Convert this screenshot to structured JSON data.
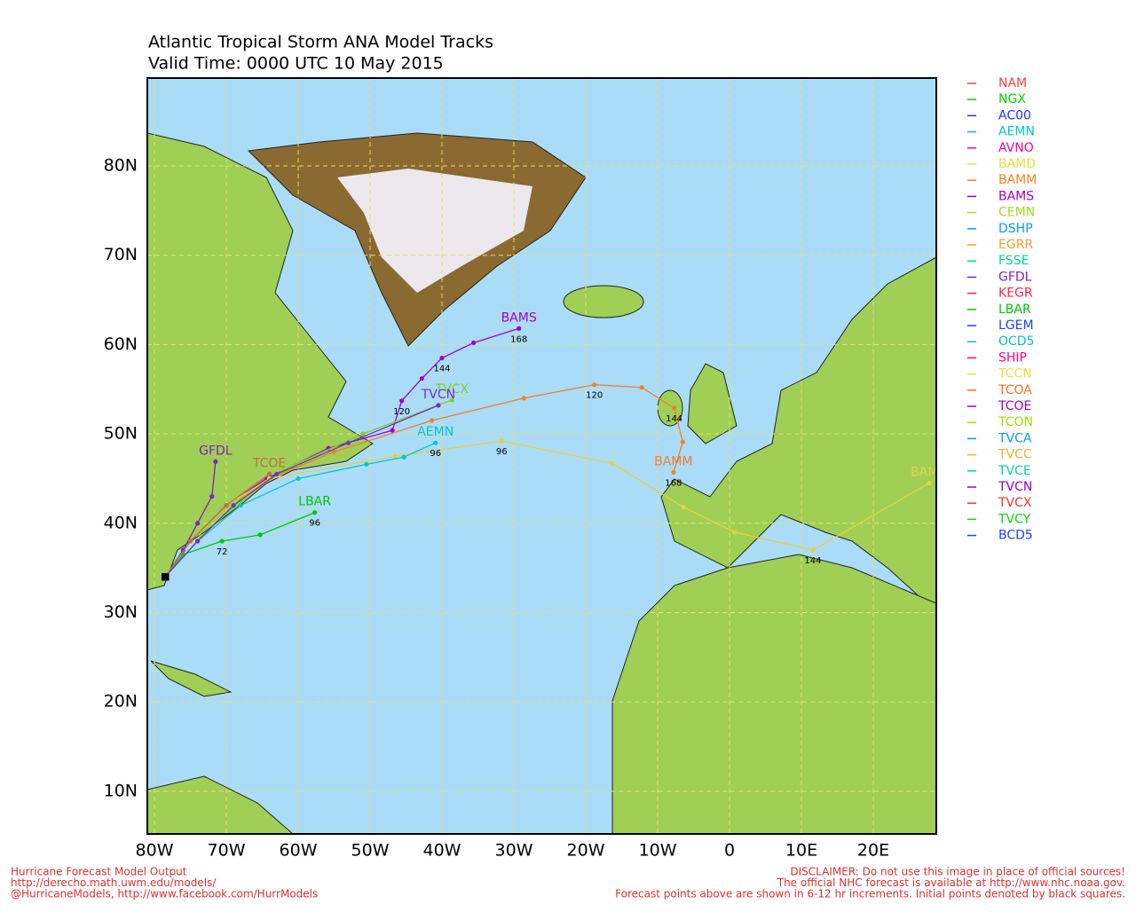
{
  "title": "Atlantic Tropical Storm ANA Model Tracks",
  "subtitle": "Valid Time: 0000 UTC 10 May 2015",
  "map": {
    "lat_ticks": [
      {
        "value": 80,
        "label": "80N"
      },
      {
        "value": 70,
        "label": "70N"
      },
      {
        "value": 60,
        "label": "60N"
      },
      {
        "value": 50,
        "label": "50N"
      },
      {
        "value": 40,
        "label": "40N"
      },
      {
        "value": 30,
        "label": "30N"
      },
      {
        "value": 20,
        "label": "20N"
      },
      {
        "value": 10,
        "label": "10N"
      }
    ],
    "lon_ticks": [
      {
        "value": -80,
        "label": "80W"
      },
      {
        "value": -70,
        "label": "70W"
      },
      {
        "value": -60,
        "label": "60W"
      },
      {
        "value": -50,
        "label": "50W"
      },
      {
        "value": -40,
        "label": "40W"
      },
      {
        "value": -30,
        "label": "30W"
      },
      {
        "value": -20,
        "label": "20W"
      },
      {
        "value": -10,
        "label": "10W"
      },
      {
        "value": 0,
        "label": "0"
      },
      {
        "value": 10,
        "label": "10E"
      },
      {
        "value": 20,
        "label": "20E"
      }
    ]
  },
  "legend": [
    {
      "name": "NAM",
      "color": "#ff4040"
    },
    {
      "name": "NGX",
      "color": "#00d800"
    },
    {
      "name": "AC00",
      "color": "#2030ff"
    },
    {
      "name": "AEMN",
      "color": "#00c8c8"
    },
    {
      "name": "AVNO",
      "color": "#ff00a0"
    },
    {
      "name": "BAMD",
      "color": "#e8e040"
    },
    {
      "name": "BAMM",
      "color": "#ff8020"
    },
    {
      "name": "BAMS",
      "color": "#a000c8"
    },
    {
      "name": "CEMN",
      "color": "#a0e020"
    },
    {
      "name": "DSHP",
      "color": "#00a0ff"
    },
    {
      "name": "EGRR",
      "color": "#f0a030"
    },
    {
      "name": "FSSE",
      "color": "#00d890"
    },
    {
      "name": "GFDL",
      "color": "#8020c0"
    },
    {
      "name": "KEGR",
      "color": "#ff2050"
    },
    {
      "name": "LBAR",
      "color": "#00c800"
    },
    {
      "name": "LGEM",
      "color": "#2040ff"
    },
    {
      "name": "OCD5",
      "color": "#00c0d0"
    },
    {
      "name": "SHIP",
      "color": "#ff0080"
    },
    {
      "name": "TCCN",
      "color": "#f0e040"
    },
    {
      "name": "TCOA",
      "color": "#ff7020"
    },
    {
      "name": "TCOE",
      "color": "#a000c0"
    },
    {
      "name": "TCON",
      "color": "#a0e000"
    },
    {
      "name": "TVCA",
      "color": "#00a0f0"
    },
    {
      "name": "TVCC",
      "color": "#f0b030"
    },
    {
      "name": "TVCE",
      "color": "#00d8a0"
    },
    {
      "name": "TVCN",
      "color": "#9000d0"
    },
    {
      "name": "TVCX",
      "color": "#ff3030"
    },
    {
      "name": "TVCY",
      "color": "#00e000"
    },
    {
      "name": "BCD5",
      "color": "#2040ff"
    }
  ],
  "tracks": [
    {
      "name": "BAMS",
      "color": "#a000c8",
      "lats": [
        34,
        38,
        42,
        45,
        48.4,
        50.4,
        53.7,
        56.2,
        58.5,
        60.2,
        61.8
      ],
      "lons": [
        -78.5,
        -75,
        -70,
        -64.4,
        -55.8,
        -46.9,
        -45.6,
        -42.8,
        -40,
        -35.6,
        -29.3
      ],
      "hours": [
        null,
        null,
        null,
        null,
        null,
        null,
        120,
        null,
        144,
        null,
        168
      ]
    },
    {
      "name": "BAMM",
      "color": "#f08030",
      "lats": [
        34,
        38,
        42,
        45,
        48,
        51.5,
        54.0,
        55.5,
        55.2,
        52.9,
        49.1,
        45.7
      ],
      "lons": [
        -78.5,
        -75,
        -70,
        -64,
        -55,
        -41.4,
        -28.6,
        -18.8,
        -12.2,
        -7.7,
        -6.5,
        -7.8
      ],
      "hours": [
        null,
        null,
        null,
        null,
        null,
        null,
        null,
        120,
        null,
        144,
        null,
        168
      ]
    },
    {
      "name": "BAMD",
      "color": "#e8d040",
      "lats": [
        34,
        38,
        42,
        45,
        47.5,
        49.2,
        46.7,
        41.8,
        39.0,
        37.0,
        44.5
      ],
      "lons": [
        -78.5,
        -75,
        -70,
        -64,
        -46.5,
        -31.7,
        -16.3,
        -6.4,
        0.7,
        11.6,
        27.8
      ],
      "hours": [
        null,
        null,
        null,
        null,
        null,
        96,
        null,
        null,
        null,
        144,
        null
      ]
    },
    {
      "name": "LBAR",
      "color": "#00c800",
      "lats": [
        34,
        36.5,
        38.0,
        38.7,
        41.2
      ],
      "lons": [
        -78.5,
        -76,
        -70.6,
        -65.3,
        -57.7
      ],
      "hours": [
        null,
        null,
        72,
        null,
        96
      ]
    },
    {
      "name": "AEMN",
      "color": "#00c8c8",
      "lats": [
        34,
        38,
        42,
        45,
        46.6,
        47.4,
        49.0
      ],
      "lons": [
        -78.5,
        -74,
        -68,
        -60,
        -50.5,
        -45.3,
        -40.9
      ],
      "hours": [
        null,
        null,
        null,
        null,
        null,
        null,
        96
      ]
    },
    {
      "name": "TVCX",
      "color": "#80d020",
      "lats": [
        34,
        38.5,
        42.5,
        46,
        50,
        53.8
      ],
      "lons": [
        -78.5,
        -73.5,
        -68,
        -62,
        -51,
        -38.6
      ],
      "hours": [
        null,
        null,
        null,
        null,
        null,
        null
      ]
    },
    {
      "name": "TVCN",
      "color": "#7030d0",
      "lats": [
        34,
        38,
        42,
        45.5,
        49,
        53.2
      ],
      "lons": [
        -78.5,
        -74,
        -69,
        -63,
        -53,
        -40.5
      ],
      "hours": [
        null,
        null,
        null,
        null,
        null,
        null
      ]
    },
    {
      "name": "GFDL",
      "color": "#8020c0",
      "lats": [
        34,
        37,
        40,
        43,
        46.9
      ],
      "lons": [
        -78.5,
        -76,
        -74,
        -72,
        -71.5
      ],
      "hours": [
        null,
        null,
        null,
        null,
        null
      ]
    },
    {
      "name": "TCOE",
      "color": "#c07040",
      "lats": [
        34,
        38,
        42,
        45.5
      ],
      "lons": [
        -78.5,
        -75,
        -70,
        -64
      ],
      "hours": [
        null,
        null,
        null,
        null
      ]
    }
  ],
  "footer_left": [
    "Hurricane Forecast Model Output",
    "http://derecho.math.uwm.edu/models/",
    "@HurricaneModels, http://www.facebook.com/HurrModels"
  ],
  "footer_right": [
    "DISCLAIMER: Do not use this image in place of official sources!",
    "The official NHC forecast is available at http://www.nhc.noaa.gov.",
    "Forecast points above are shown in 6-12 hr increments. Initial points denoted by black squares."
  ]
}
